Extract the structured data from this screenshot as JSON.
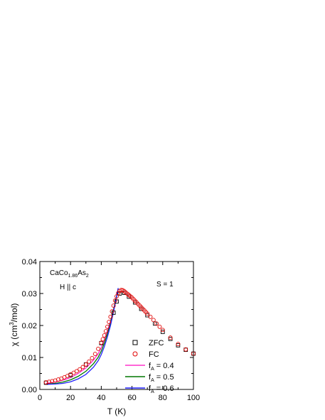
{
  "chart_data": {
    "type": "scatter",
    "xlabel": "T (K)",
    "ylabel": "χ (cm³/mol)",
    "xlim": [
      0,
      100
    ],
    "ylim": [
      0,
      0.04
    ],
    "xticks": [
      "0",
      "20",
      "40",
      "60",
      "80",
      "100"
    ],
    "yticks": [
      "0.00",
      "0.01",
      "0.02",
      "0.03",
      "0.04"
    ],
    "annotations": {
      "compound": "CaCo1.86As2",
      "field": "H || c",
      "spin": "S = 1"
    },
    "legend": {
      "placement": "bottom-right",
      "entries": [
        {
          "label": "ZFC",
          "prefix": "",
          "sub": "",
          "suffix": "",
          "kind": "square",
          "color": "#000000"
        },
        {
          "label": "FC",
          "prefix": "",
          "sub": "",
          "suffix": "",
          "kind": "circle",
          "color": "#e00000"
        },
        {
          "label": "fA = 0.4",
          "prefix": "f",
          "sub": "A",
          "suffix": " = 0.4",
          "kind": "line",
          "color": "#ff33cc"
        },
        {
          "label": "fA = 0.5",
          "prefix": "f",
          "sub": "A",
          "suffix": " = 0.5",
          "kind": "line",
          "color": "#007700"
        },
        {
          "label": "fA = 0.6",
          "prefix": "f",
          "sub": "A",
          "suffix": " = 0.6",
          "kind": "line",
          "color": "#2222ff"
        }
      ]
    },
    "series": [
      {
        "name": "ZFC",
        "kind": "square",
        "color": "#000000",
        "x": [
          4,
          20,
          30,
          40,
          48,
          50,
          52,
          55,
          58,
          62,
          66,
          70,
          75,
          80,
          85,
          90,
          95,
          100
        ],
        "y": [
          0.0021,
          0.0045,
          0.0078,
          0.0145,
          0.024,
          0.0275,
          0.03,
          0.0302,
          0.029,
          0.0272,
          0.0252,
          0.0232,
          0.0206,
          0.018,
          0.0158,
          0.0138,
          0.0124,
          0.0112
        ]
      },
      {
        "name": "FC",
        "kind": "circle",
        "color": "#e00000",
        "x": [
          4,
          6,
          8,
          10,
          12,
          14,
          16,
          18,
          20,
          22,
          24,
          26,
          28,
          30,
          32,
          34,
          36,
          38,
          40,
          41,
          42,
          43,
          44,
          45,
          46,
          47,
          48,
          49,
          50,
          51,
          52,
          53,
          54,
          55,
          56,
          57,
          58,
          59,
          60,
          61,
          62,
          63,
          64,
          65,
          66,
          67,
          68,
          69,
          70,
          72,
          74,
          76,
          78,
          80,
          85,
          90,
          95,
          100
        ],
        "y": [
          0.0022,
          0.0024,
          0.0026,
          0.0028,
          0.0031,
          0.0034,
          0.0038,
          0.0042,
          0.0047,
          0.0052,
          0.0057,
          0.0063,
          0.007,
          0.0078,
          0.0087,
          0.0098,
          0.0111,
          0.0127,
          0.0146,
          0.0157,
          0.0169,
          0.0182,
          0.0196,
          0.0211,
          0.0227,
          0.0244,
          0.0262,
          0.0278,
          0.0291,
          0.0301,
          0.0308,
          0.0311,
          0.031,
          0.0307,
          0.0303,
          0.0299,
          0.0295,
          0.0291,
          0.0287,
          0.0282,
          0.0277,
          0.0272,
          0.0267,
          0.0262,
          0.0257,
          0.0252,
          0.0247,
          0.0242,
          0.0237,
          0.0227,
          0.0217,
          0.0206,
          0.0196,
          0.0186,
          0.0162,
          0.0142,
          0.0125,
          0.0112
        ]
      },
      {
        "name": "fA = 0.4",
        "kind": "line",
        "color": "#ff33cc",
        "x": [
          4,
          10,
          15,
          20,
          25,
          30,
          35,
          38,
          40,
          42,
          44,
          46,
          48,
          50,
          51
        ],
        "y": [
          0.0019,
          0.0023,
          0.0029,
          0.0037,
          0.005,
          0.0067,
          0.0092,
          0.0112,
          0.0131,
          0.0155,
          0.0183,
          0.0215,
          0.0252,
          0.0292,
          0.0315
        ]
      },
      {
        "name": "fA = 0.5",
        "kind": "line",
        "color": "#007700",
        "x": [
          4,
          10,
          15,
          20,
          25,
          30,
          35,
          38,
          40,
          42,
          44,
          46,
          48,
          50,
          51
        ],
        "y": [
          0.0017,
          0.0019,
          0.0023,
          0.003,
          0.0041,
          0.0057,
          0.0081,
          0.0101,
          0.012,
          0.0145,
          0.0174,
          0.0209,
          0.0249,
          0.0292,
          0.0316
        ]
      },
      {
        "name": "fA = 0.6",
        "kind": "line",
        "color": "#2222ff",
        "x": [
          4,
          10,
          15,
          20,
          25,
          30,
          35,
          38,
          40,
          42,
          44,
          46,
          48,
          50,
          51
        ],
        "y": [
          0.0016,
          0.0017,
          0.0019,
          0.0024,
          0.0033,
          0.0047,
          0.007,
          0.009,
          0.0109,
          0.0134,
          0.0164,
          0.02,
          0.0243,
          0.029,
          0.0317
        ]
      }
    ]
  }
}
